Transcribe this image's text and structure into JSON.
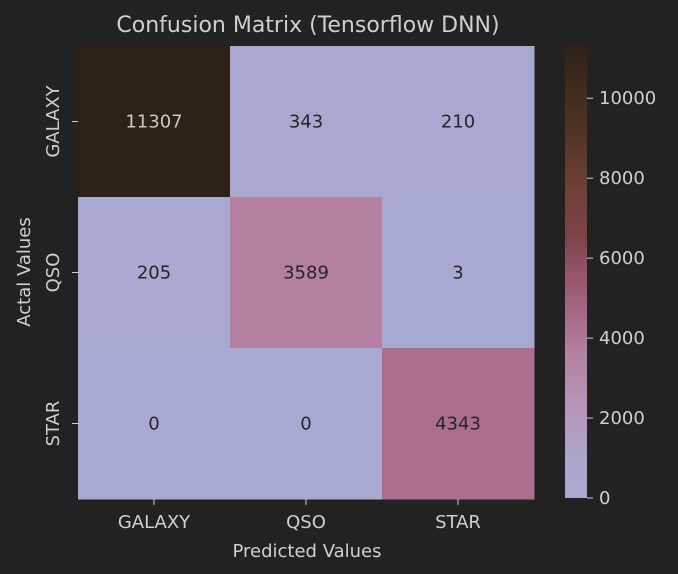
{
  "chart_data": {
    "type": "heatmap",
    "title": "Confusion Matrix (Tensorflow DNN)",
    "xlabel": "Predicted Values",
    "ylabel": "Actal Values",
    "x_categories": [
      "GALAXY",
      "QSO",
      "STAR"
    ],
    "y_categories": [
      "GALAXY",
      "QSO",
      "STAR"
    ],
    "values": [
      [
        11307,
        343,
        210
      ],
      [
        205,
        3589,
        3
      ],
      [
        0,
        0,
        4343
      ]
    ],
    "colorbar": {
      "min": 0,
      "max": 11307,
      "ticks": [
        0,
        2000,
        4000,
        6000,
        8000,
        10000
      ]
    },
    "colormap": [
      {
        "t": 0.0,
        "color": "#a7a9d2"
      },
      {
        "t": 0.08,
        "color": "#aba6ca"
      },
      {
        "t": 0.2,
        "color": "#b795b9"
      },
      {
        "t": 0.32,
        "color": "#b3819e"
      },
      {
        "t": 0.4,
        "color": "#a86a88"
      },
      {
        "t": 0.48,
        "color": "#9a5670"
      },
      {
        "t": 0.58,
        "color": "#7e4348"
      },
      {
        "t": 0.7,
        "color": "#6d3e34"
      },
      {
        "t": 0.82,
        "color": "#4e3325"
      },
      {
        "t": 1.0,
        "color": "#2e2217"
      }
    ]
  }
}
